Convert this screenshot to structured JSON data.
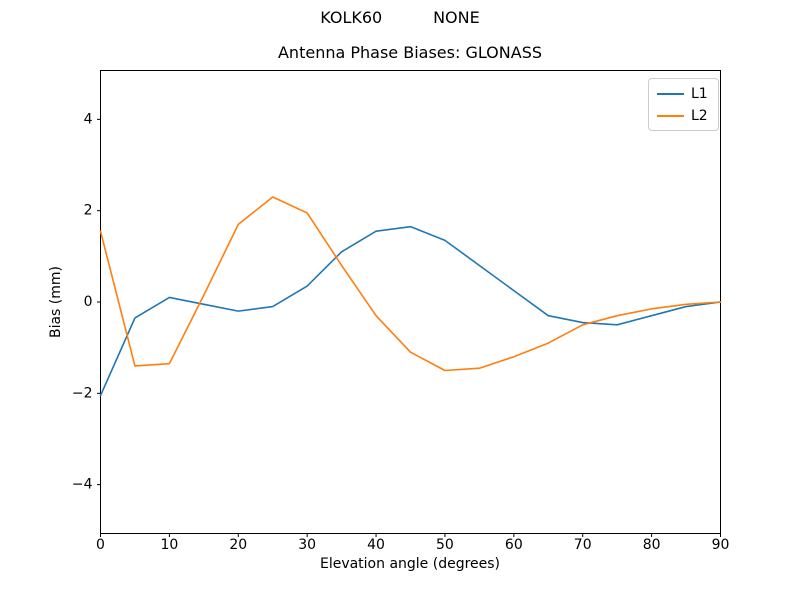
{
  "figure": {
    "suptitle": "KOLK60          NONE",
    "background": "#ffffff"
  },
  "chart_data": {
    "type": "line",
    "title": "Antenna Phase Biases: GLONASS",
    "xlabel": "Elevation angle (degrees)",
    "ylabel": "Bias (mm)",
    "x": [
      0,
      5,
      10,
      15,
      20,
      25,
      30,
      35,
      40,
      45,
      50,
      55,
      60,
      65,
      70,
      75,
      80,
      85,
      90
    ],
    "series": [
      {
        "name": "L1",
        "color": "#1f77b4",
        "values": [
          -2.05,
          -0.35,
          0.1,
          -0.05,
          -0.2,
          -0.1,
          0.35,
          1.1,
          1.55,
          1.65,
          1.35,
          0.8,
          0.25,
          -0.3,
          -0.45,
          -0.5,
          -0.3,
          -0.1,
          0.0
        ]
      },
      {
        "name": "L2",
        "color": "#ff7f0e",
        "values": [
          1.55,
          -1.4,
          -1.35,
          0.15,
          1.7,
          2.3,
          1.95,
          0.8,
          -0.3,
          -1.1,
          -1.5,
          -1.45,
          -1.2,
          -0.9,
          -0.5,
          -0.3,
          -0.15,
          -0.05,
          0.0
        ]
      }
    ],
    "xlim": [
      0,
      90
    ],
    "ylim": [
      -5.07,
      5.07
    ],
    "xticks": [
      0,
      10,
      20,
      30,
      40,
      50,
      60,
      70,
      80,
      90
    ],
    "yticks": [
      -4,
      -2,
      0,
      2,
      4
    ],
    "grid": false,
    "legend_position": "upper right",
    "axis_color": "#000000"
  }
}
